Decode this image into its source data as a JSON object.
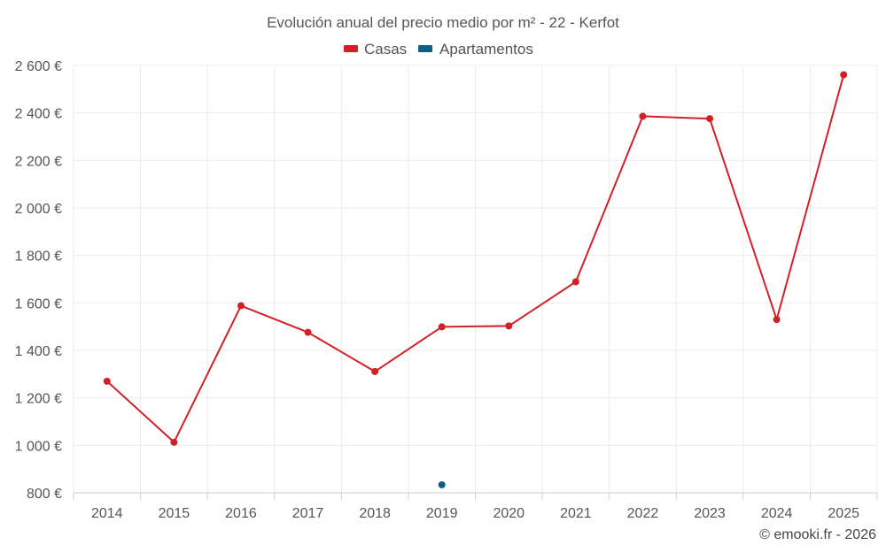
{
  "chart_data": {
    "type": "line",
    "title": "Evolución anual del precio medio por m² - 22 - Kerfot",
    "xlabel": "",
    "ylabel": "",
    "categories": [
      "2014",
      "2015",
      "2016",
      "2017",
      "2018",
      "2019",
      "2020",
      "2021",
      "2022",
      "2023",
      "2024",
      "2025"
    ],
    "y_ticks": [
      800,
      1000,
      1200,
      1400,
      1600,
      1800,
      2000,
      2200,
      2400,
      2600
    ],
    "y_tick_labels": [
      "800 €",
      "1 000 €",
      "1 200 €",
      "1 400 €",
      "1 600 €",
      "1 800 €",
      "2 000 €",
      "2 200 €",
      "2 400 €",
      "2 600 €"
    ],
    "ylim": [
      800,
      2600
    ],
    "grid": true,
    "legend_position": "top-center",
    "series": [
      {
        "name": "Casas",
        "color": "#d32027",
        "values": [
          1270,
          1013,
          1588,
          1476,
          1311,
          1499,
          1503,
          1689,
          2386,
          2376,
          1530,
          2561
        ]
      },
      {
        "name": "Apartamentos",
        "color": "#0f5f8c",
        "values": [
          null,
          null,
          null,
          null,
          null,
          834,
          null,
          null,
          null,
          null,
          null,
          null
        ]
      }
    ],
    "credit": "© emooki.fr - 2026"
  }
}
